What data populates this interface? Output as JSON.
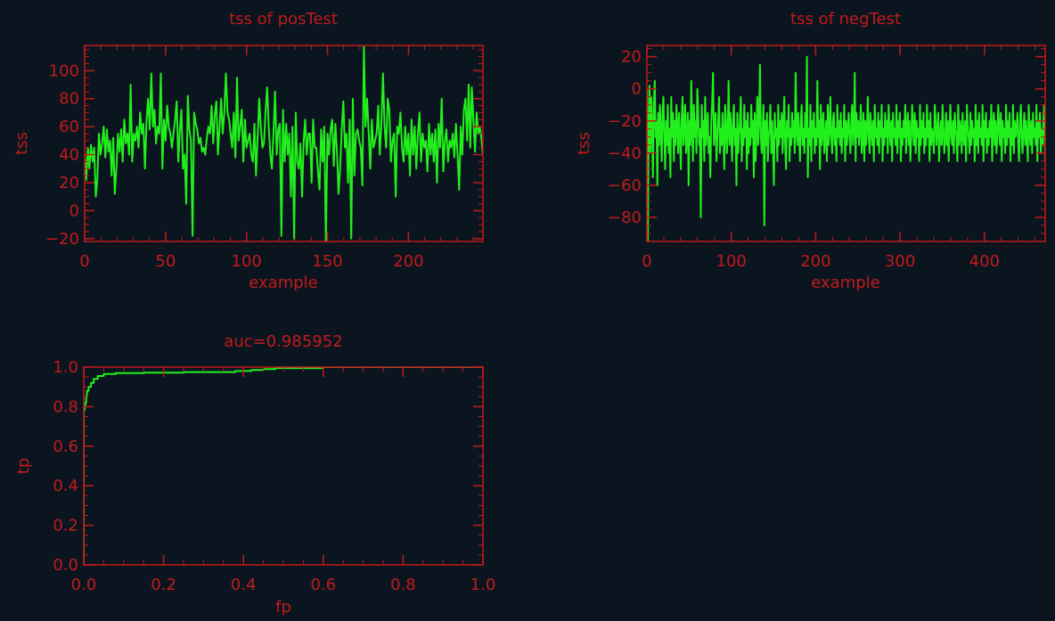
{
  "theme": {
    "background": "#0b1520",
    "axis_color": "#c21a1a",
    "text_color": "#c21a1a",
    "data_color": "#22f01c"
  },
  "chart_data": [
    {
      "id": "pos",
      "type": "line",
      "title": "tss of posTest",
      "xlabel": "example",
      "ylabel": "tss",
      "xlim": [
        0,
        246
      ],
      "ylim": [
        -22,
        118
      ],
      "xticks": [
        0,
        50,
        100,
        150,
        200
      ],
      "yticks": [
        -20,
        0,
        20,
        40,
        60,
        80,
        100
      ],
      "x_minor": 10,
      "y_minor": 5,
      "series": [
        {
          "values": [
            40,
            22,
            45,
            30,
            47,
            35,
            45,
            10,
            22,
            55,
            40,
            48,
            60,
            38,
            58,
            42,
            50,
            25,
            52,
            12,
            30,
            55,
            42,
            58,
            35,
            65,
            48,
            55,
            40,
            90,
            35,
            55,
            50,
            60,
            45,
            70,
            55,
            62,
            30,
            65,
            80,
            58,
            98,
            60,
            72,
            48,
            60,
            55,
            98,
            30,
            65,
            50,
            75,
            60,
            55,
            45,
            55,
            65,
            78,
            35,
            58,
            72,
            30,
            40,
            5,
            82,
            58,
            50,
            -18,
            70,
            62,
            58,
            48,
            52,
            42,
            45,
            40,
            52,
            60,
            55,
            75,
            48,
            68,
            78,
            40,
            60,
            80,
            55,
            70,
            98,
            70,
            65,
            55,
            45,
            70,
            38,
            95,
            50,
            60,
            72,
            35,
            65,
            45,
            50,
            55,
            40,
            35,
            62,
            25,
            52,
            80,
            60,
            45,
            48,
            70,
            88,
            60,
            40,
            30,
            55,
            85,
            40,
            58,
            62,
            -18,
            72,
            35,
            62,
            40,
            55,
            10,
            60,
            -20,
            70,
            35,
            30,
            48,
            10,
            50,
            65,
            40,
            55,
            55,
            20,
            65,
            45,
            45,
            28,
            15,
            58,
            35,
            60,
            -22,
            55,
            40,
            58,
            65,
            32,
            62,
            42,
            12,
            30,
            58,
            78,
            45,
            55,
            20,
            65,
            -20,
            80,
            25,
            55,
            58,
            50,
            45,
            18,
            117,
            60,
            80,
            55,
            30,
            65,
            45,
            50,
            55,
            75,
            40,
            62,
            98,
            60,
            45,
            80,
            72,
            35,
            50,
            55,
            10,
            60,
            55,
            70,
            45,
            35,
            60,
            40,
            55,
            25,
            65,
            40,
            60,
            30,
            55,
            70,
            35,
            55,
            45,
            50,
            28,
            62,
            40,
            55,
            35,
            58,
            20,
            62,
            45,
            80,
            28,
            50,
            58,
            35,
            50,
            45,
            55,
            38,
            62,
            40,
            15,
            60,
            40,
            72,
            80,
            50,
            90,
            45,
            88,
            65,
            42,
            70,
            55,
            60,
            52,
            40
          ]
        }
      ]
    },
    {
      "id": "neg",
      "type": "line",
      "title": "tss of negTest",
      "xlabel": "example",
      "ylabel": "tss",
      "xlim": [
        0,
        472
      ],
      "ylim": [
        -95,
        27
      ],
      "xticks": [
        0,
        100,
        200,
        300,
        400
      ],
      "yticks": [
        -80,
        -60,
        -40,
        -20,
        0,
        20
      ],
      "x_minor": 20,
      "y_minor": 5,
      "series": [
        {
          "values": [
            0,
            -95,
            -20,
            2,
            -40,
            -5,
            -25,
            -55,
            -10,
            5,
            -30,
            -20,
            -60,
            -15,
            -35,
            -10,
            -25,
            -45,
            -15,
            -5,
            -30,
            -50,
            -20,
            -35,
            -10,
            -40,
            -25,
            -55,
            -5,
            -30,
            -15,
            -45,
            -20,
            -35,
            -10,
            -25,
            -40,
            -15,
            -30,
            -50,
            -20,
            -5,
            -35,
            -25,
            -10,
            -40,
            -30,
            -15,
            -60,
            -20,
            -35,
            5,
            -25,
            -45,
            -10,
            -30,
            -20,
            -40,
            0,
            -15,
            -35,
            -25,
            -80,
            -10,
            -30,
            -20,
            -45,
            -5,
            -35,
            -25,
            -15,
            -40,
            -30,
            -55,
            -20,
            -10,
            10,
            -35,
            -25,
            -15,
            -45,
            -30,
            -20,
            -5,
            -40,
            -25,
            -35,
            -15,
            -30,
            -50,
            -10,
            -20,
            -40,
            -25,
            5,
            -35,
            -15,
            -30,
            -45,
            -20,
            -10,
            -35,
            -25,
            -60,
            -15,
            -40,
            -30,
            -20,
            -5,
            -45,
            -25,
            -35,
            -10,
            -30,
            -20,
            -50,
            -15,
            -40,
            -25,
            -35,
            -10,
            -30,
            -20,
            -55,
            -15,
            -45,
            -25,
            -5,
            -35,
            -20,
            15,
            -30,
            -40,
            -25,
            -10,
            -85,
            -20,
            -35,
            -15,
            -45,
            -30,
            -25,
            -10,
            -40,
            -20,
            -35,
            -60,
            -15,
            -30,
            -25,
            -45,
            -10,
            -35,
            -20,
            -30,
            -15,
            -40,
            -25,
            -5,
            -35,
            -50,
            -20,
            -30,
            -10,
            -45,
            -25,
            -35,
            -15,
            -30,
            -20,
            -40,
            10,
            -25,
            -35,
            -15,
            -30,
            -45,
            -20,
            -10,
            -35,
            -25,
            -40,
            -15,
            -30,
            20,
            -55,
            -25,
            -35,
            -10,
            -45,
            -20,
            -30,
            -15,
            -40,
            -25,
            -35,
            5,
            -30,
            -20,
            -50,
            -10,
            -35,
            -25,
            -15,
            -40,
            -30,
            -20,
            -45,
            -10,
            -35,
            -25,
            -5,
            -30,
            -40,
            -20,
            -15,
            -35,
            -25,
            -45,
            -10,
            -30,
            -20,
            -35,
            -15,
            -40,
            -25,
            -30,
            -10,
            -45,
            -20,
            -35,
            -25,
            -15,
            -30,
            -40,
            -20,
            -10,
            -35,
            -25,
            10,
            -45,
            -15,
            -30,
            -20,
            -35,
            -25,
            -10,
            -40,
            -30,
            -15,
            -45,
            -20,
            -35,
            -25,
            -5,
            -30,
            -40,
            -15,
            -25,
            -35,
            -20,
            -45,
            -10,
            -30,
            -25,
            -35,
            -15,
            -40,
            -20,
            -30,
            -10,
            -45,
            -25,
            -35,
            -15,
            -30,
            -20,
            -40,
            -10,
            -25,
            -35,
            -20,
            -45,
            -15,
            -30,
            -25,
            -35,
            -10,
            -40,
            -20,
            -30,
            -15,
            -45,
            -25,
            -35,
            -20,
            -30,
            -10,
            -40,
            -25,
            -15,
            -35,
            -20,
            -45,
            -30,
            -10,
            -25,
            -35,
            -15,
            -40,
            -20,
            -30,
            -25,
            -45,
            -10,
            -35,
            -20,
            -30,
            -15,
            -40,
            -25,
            -35,
            -10,
            -30,
            -20,
            -45,
            -15,
            -35,
            -25,
            -30,
            -40,
            -10,
            -20,
            -35,
            -25,
            -15,
            -45,
            -30,
            -20,
            -35,
            -10,
            -25,
            -40,
            -30,
            -15,
            -35,
            -20,
            -45,
            -25,
            -10,
            -30,
            -35,
            -20,
            -40,
            -15,
            -25,
            -30,
            -45,
            -10,
            -35,
            -20,
            -25,
            -40,
            -15,
            -30,
            -35,
            -20,
            -45,
            -10,
            -25,
            -30,
            -40,
            -15,
            -35,
            -20,
            -30,
            -25,
            -45,
            -10,
            -35,
            -20,
            -40,
            -15,
            -30,
            -25,
            -35,
            -10,
            -45,
            -20,
            -30,
            -15,
            -40,
            -25,
            -35,
            -20,
            -30,
            -10,
            -45,
            -25,
            -15,
            -35,
            -20,
            -40,
            -30,
            -10,
            -25,
            -35,
            -15,
            -45,
            -20,
            -30,
            -25,
            -40,
            -10,
            -35,
            -20,
            -30,
            -15,
            -45,
            -25,
            -35,
            -10,
            -40,
            -20,
            -30,
            -25,
            -15,
            -35,
            -45,
            -20,
            -10,
            -30,
            -40,
            -25,
            -15,
            -35,
            -20,
            -30,
            -45,
            -10,
            -25,
            -35,
            -20,
            -40,
            -15,
            -30,
            -25,
            -35,
            -10,
            -45,
            -20,
            -30,
            -15,
            -40,
            -25,
            -35,
            -20,
            -10,
            -45
          ]
        }
      ]
    },
    {
      "id": "roc",
      "type": "line",
      "title": "auc=0.985952",
      "xlabel": "fp",
      "ylabel": "tp",
      "xlim": [
        0,
        1
      ],
      "ylim": [
        0,
        1
      ],
      "xticks": [
        0.0,
        0.2,
        0.4,
        0.6,
        0.8,
        1.0
      ],
      "yticks": [
        0.0,
        0.2,
        0.4,
        0.6,
        0.8,
        1.0
      ],
      "x_minor": 0.05,
      "y_minor": 0.05,
      "step": true,
      "series": [
        {
          "x": [
            0,
            0,
            0.002,
            0.004,
            0.006,
            0.008,
            0.012,
            0.018,
            0.025,
            0.035,
            0.05,
            0.08,
            0.15,
            0.25,
            0.33,
            0.38,
            0.42,
            0.45,
            0.48,
            0.6,
            1.0
          ],
          "y": [
            0,
            0.78,
            0.8,
            0.82,
            0.85,
            0.88,
            0.9,
            0.92,
            0.94,
            0.955,
            0.965,
            0.97,
            0.972,
            0.975,
            0.975,
            0.98,
            0.985,
            0.99,
            0.995,
            1.0,
            1.0
          ]
        }
      ]
    }
  ]
}
